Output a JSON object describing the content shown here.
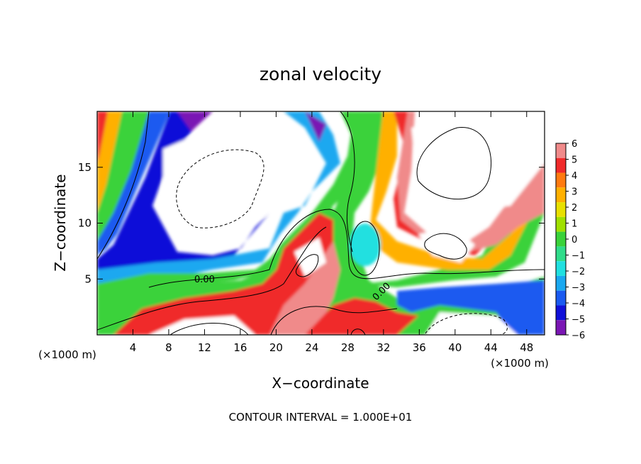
{
  "chart_data": {
    "type": "heatmap",
    "title": "zonal velocity",
    "xlabel": "X−coordinate",
    "ylabel": "Z−coordinate",
    "x_unit_label": "(×1000 m)",
    "x_unit_label_right": "(×1000 m)",
    "footer": "CONTOUR INTERVAL = 1.000E+01",
    "xlim": [
      0,
      50
    ],
    "ylim": [
      0,
      20
    ],
    "xticks": [
      4,
      8,
      12,
      16,
      20,
      24,
      28,
      32,
      36,
      40,
      44,
      48
    ],
    "yticks": [
      5,
      10,
      15
    ],
    "colorbar": {
      "levels": [
        "6",
        "5",
        "4",
        "3",
        "2",
        "1",
        "0",
        "−1",
        "−2",
        "−3",
        "−4",
        "−5",
        "−6"
      ],
      "colors": [
        "#f08a8a",
        "#f02a2a",
        "#ff7a10",
        "#ffb000",
        "#e8e000",
        "#a0e000",
        "#3ad23a",
        "#30dc8a",
        "#20e0e0",
        "#1aa8f0",
        "#1a5af0",
        "#1010d8",
        "#7a16b4"
      ]
    },
    "contour_labels": [
      {
        "text": "0.00",
        "x": 12.0,
        "y": 4.7
      },
      {
        "text": "0.00",
        "x": 32.0,
        "y": 3.7
      }
    ],
    "grid": false,
    "legend": "right"
  }
}
